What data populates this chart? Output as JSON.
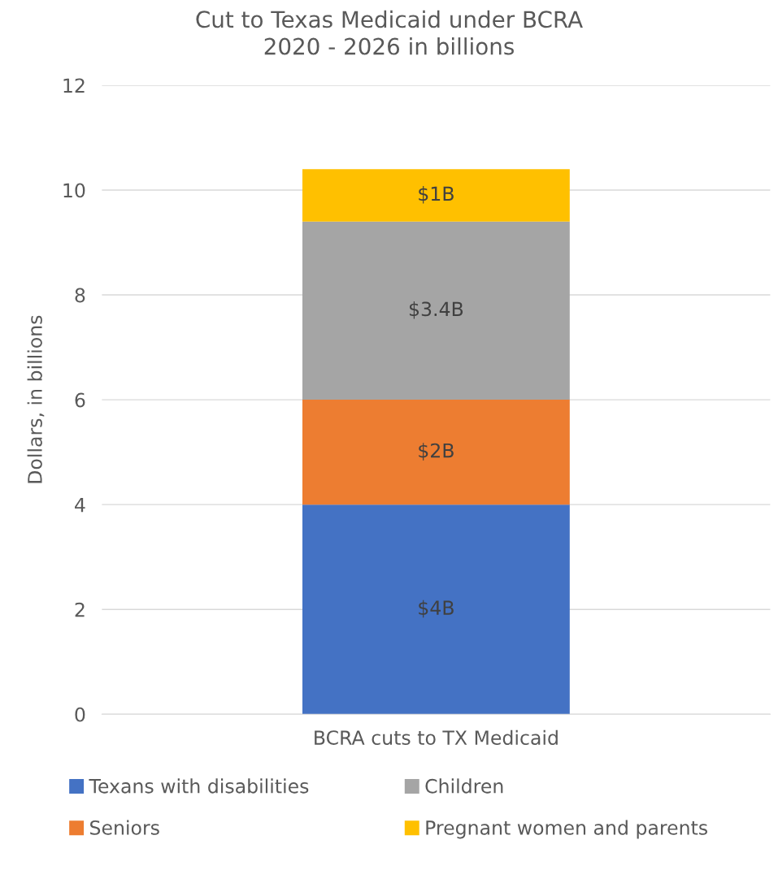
{
  "chart_data": {
    "type": "bar",
    "title": "Cut to Texas Medicaid under BCRA\n2020 - 2026 in billions",
    "ylabel": "Dollars, in billions",
    "categories": [
      "BCRA cuts to TX Medicaid"
    ],
    "stacked": true,
    "series": [
      {
        "name": "Texans with disabilities",
        "color": "#4472c4",
        "values": [
          4
        ],
        "value_labels": [
          "$4B"
        ]
      },
      {
        "name": "Seniors",
        "color": "#ed7d31",
        "values": [
          2
        ],
        "value_labels": [
          "$2B"
        ]
      },
      {
        "name": "Children",
        "color": "#a5a5a5",
        "values": [
          3.4
        ],
        "value_labels": [
          "$3.4B"
        ]
      },
      {
        "name": "Pregnant women and parents",
        "color": "#ffc000",
        "values": [
          1
        ],
        "value_labels": [
          "$1B"
        ]
      }
    ],
    "ylim": [
      0,
      12
    ],
    "yticks": [
      0,
      2,
      4,
      6,
      8,
      10,
      12
    ],
    "grid": "y",
    "legend": "bottom"
  }
}
